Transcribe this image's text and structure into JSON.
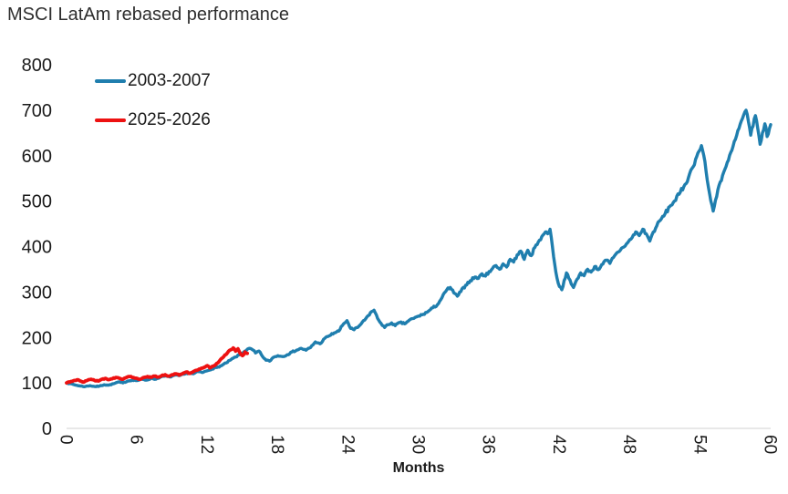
{
  "title": "MSCI LatAm rebased performance",
  "chart_data": {
    "type": "line",
    "title": "MSCI LatAm rebased performance",
    "xlabel": "Months",
    "ylabel": "",
    "xlim": [
      0,
      60
    ],
    "ylim": [
      0,
      800
    ],
    "x_ticks": [
      0,
      6,
      12,
      18,
      24,
      30,
      36,
      42,
      48,
      54,
      60
    ],
    "y_ticks": [
      0,
      100,
      200,
      300,
      400,
      500,
      600,
      700,
      800
    ],
    "grid": false,
    "legend_position": "top-left",
    "axis_line_color": "#d9d9d9",
    "background": "#ffffff",
    "render_noise": {
      "seed": 7,
      "step_months": 0.1,
      "amplitude_pct": 0.9
    },
    "series": [
      {
        "name": "2003-2007",
        "color": "#1f7eae",
        "line_width": 3.4,
        "points": [
          [
            0,
            100
          ],
          [
            0.4,
            98
          ],
          [
            0.8,
            95
          ],
          [
            1.2,
            93
          ],
          [
            1.6,
            92
          ],
          [
            2,
            94
          ],
          [
            2.4,
            92
          ],
          [
            2.8,
            93
          ],
          [
            3.2,
            96
          ],
          [
            3.6,
            95
          ],
          [
            4,
            98
          ],
          [
            4.4,
            102
          ],
          [
            4.8,
            100
          ],
          [
            5.2,
            104
          ],
          [
            5.6,
            106
          ],
          [
            6,
            105
          ],
          [
            6.4,
            108
          ],
          [
            6.8,
            106
          ],
          [
            7.2,
            110
          ],
          [
            7.6,
            108
          ],
          [
            8,
            113
          ],
          [
            8.4,
            115
          ],
          [
            8.8,
            113
          ],
          [
            9.2,
            117
          ],
          [
            9.6,
            116
          ],
          [
            10,
            119
          ],
          [
            10.4,
            122
          ],
          [
            10.8,
            120
          ],
          [
            11.2,
            125
          ],
          [
            11.6,
            123
          ],
          [
            12,
            127
          ],
          [
            12.4,
            131
          ],
          [
            12.8,
            134
          ],
          [
            13.2,
            138
          ],
          [
            13.6,
            144
          ],
          [
            14,
            151
          ],
          [
            14.4,
            157
          ],
          [
            14.8,
            163
          ],
          [
            15.2,
            170
          ],
          [
            15.6,
            176
          ],
          [
            15.9,
            172
          ],
          [
            16.1,
            166
          ],
          [
            16.4,
            170
          ],
          [
            16.7,
            158
          ],
          [
            17,
            150
          ],
          [
            17.3,
            148
          ],
          [
            17.6,
            156
          ],
          [
            18,
            160
          ],
          [
            18.4,
            158
          ],
          [
            18.8,
            162
          ],
          [
            19.2,
            168
          ],
          [
            19.6,
            172
          ],
          [
            20,
            176
          ],
          [
            20.4,
            172
          ],
          [
            20.8,
            178
          ],
          [
            21.2,
            190
          ],
          [
            21.6,
            186
          ],
          [
            22,
            198
          ],
          [
            22.4,
            204
          ],
          [
            22.8,
            210
          ],
          [
            23.2,
            214
          ],
          [
            23.6,
            230
          ],
          [
            23.9,
            237
          ],
          [
            24.2,
            220
          ],
          [
            24.5,
            217
          ],
          [
            24.8,
            222
          ],
          [
            25.1,
            230
          ],
          [
            25.4,
            238
          ],
          [
            25.7,
            248
          ],
          [
            26,
            257
          ],
          [
            26.2,
            260
          ],
          [
            26.5,
            242
          ],
          [
            26.8,
            231
          ],
          [
            27.1,
            222
          ],
          [
            27.4,
            228
          ],
          [
            27.7,
            232
          ],
          [
            28,
            226
          ],
          [
            28.4,
            233
          ],
          [
            28.8,
            230
          ],
          [
            29.2,
            238
          ],
          [
            29.6,
            242
          ],
          [
            30,
            247
          ],
          [
            30.4,
            251
          ],
          [
            30.8,
            257
          ],
          [
            31.2,
            265
          ],
          [
            31.6,
            272
          ],
          [
            32,
            288
          ],
          [
            32.4,
            305
          ],
          [
            32.7,
            310
          ],
          [
            33,
            298
          ],
          [
            33.3,
            291
          ],
          [
            33.6,
            301
          ],
          [
            34,
            315
          ],
          [
            34.4,
            325
          ],
          [
            34.8,
            333
          ],
          [
            35.1,
            330
          ],
          [
            35.4,
            340
          ],
          [
            35.7,
            335
          ],
          [
            36,
            345
          ],
          [
            36.3,
            352
          ],
          [
            36.6,
            358
          ],
          [
            36.9,
            350
          ],
          [
            37.2,
            362
          ],
          [
            37.5,
            355
          ],
          [
            37.8,
            372
          ],
          [
            38.1,
            366
          ],
          [
            38.4,
            382
          ],
          [
            38.7,
            390
          ],
          [
            39,
            372
          ],
          [
            39.3,
            392
          ],
          [
            39.6,
            380
          ],
          [
            39.9,
            398
          ],
          [
            40.2,
            410
          ],
          [
            40.5,
            422
          ],
          [
            40.8,
            432
          ],
          [
            41,
            428
          ],
          [
            41.2,
            438
          ],
          [
            41.4,
            400
          ],
          [
            41.6,
            360
          ],
          [
            41.8,
            330
          ],
          [
            42,
            312
          ],
          [
            42.2,
            305
          ],
          [
            42.4,
            325
          ],
          [
            42.6,
            342
          ],
          [
            42.8,
            330
          ],
          [
            43,
            318
          ],
          [
            43.2,
            310
          ],
          [
            43.5,
            328
          ],
          [
            43.8,
            342
          ],
          [
            44.1,
            336
          ],
          [
            44.4,
            350
          ],
          [
            44.7,
            344
          ],
          [
            45,
            356
          ],
          [
            45.3,
            349
          ],
          [
            45.6,
            360
          ],
          [
            46,
            370
          ],
          [
            46.3,
            363
          ],
          [
            46.6,
            376
          ],
          [
            47,
            388
          ],
          [
            47.4,
            398
          ],
          [
            47.8,
            408
          ],
          [
            48.2,
            420
          ],
          [
            48.5,
            432
          ],
          [
            48.8,
            424
          ],
          [
            49.1,
            438
          ],
          [
            49.4,
            428
          ],
          [
            49.7,
            412
          ],
          [
            50,
            432
          ],
          [
            50.3,
            446
          ],
          [
            50.6,
            458
          ],
          [
            51,
            472
          ],
          [
            51.4,
            488
          ],
          [
            51.8,
            500
          ],
          [
            52.2,
            515
          ],
          [
            52.6,
            532
          ],
          [
            53,
            552
          ],
          [
            53.3,
            572
          ],
          [
            53.6,
            592
          ],
          [
            53.9,
            610
          ],
          [
            54.1,
            622
          ],
          [
            54.3,
            600
          ],
          [
            54.5,
            565
          ],
          [
            54.7,
            530
          ],
          [
            54.9,
            500
          ],
          [
            55.1,
            478
          ],
          [
            55.3,
            502
          ],
          [
            55.5,
            525
          ],
          [
            55.7,
            542
          ],
          [
            55.9,
            556
          ],
          [
            56.1,
            570
          ],
          [
            56.4,
            590
          ],
          [
            56.7,
            612
          ],
          [
            57,
            636
          ],
          [
            57.3,
            660
          ],
          [
            57.6,
            682
          ],
          [
            57.9,
            700
          ],
          [
            58.1,
            675
          ],
          [
            58.3,
            645
          ],
          [
            58.5,
            665
          ],
          [
            58.7,
            688
          ],
          [
            58.9,
            660
          ],
          [
            59.1,
            625
          ],
          [
            59.3,
            650
          ],
          [
            59.5,
            670
          ],
          [
            59.7,
            642
          ],
          [
            59.9,
            660
          ],
          [
            60,
            668
          ]
        ]
      },
      {
        "name": "2025-2026",
        "color": "#ed1111",
        "line_width": 3.8,
        "points": [
          [
            0,
            100
          ],
          [
            0.3,
            102
          ],
          [
            0.6,
            105
          ],
          [
            0.9,
            107
          ],
          [
            1.2,
            104
          ],
          [
            1.5,
            102
          ],
          [
            1.8,
            106
          ],
          [
            2.1,
            108
          ],
          [
            2.4,
            105
          ],
          [
            2.7,
            104
          ],
          [
            3,
            108
          ],
          [
            3.3,
            110
          ],
          [
            3.6,
            107
          ],
          [
            3.9,
            109
          ],
          [
            4.2,
            112
          ],
          [
            4.5,
            110
          ],
          [
            4.8,
            108
          ],
          [
            5.1,
            112
          ],
          [
            5.4,
            114
          ],
          [
            5.7,
            112
          ],
          [
            6,
            110
          ],
          [
            6.3,
            108
          ],
          [
            6.6,
            112
          ],
          [
            6.9,
            114
          ],
          [
            7.2,
            112
          ],
          [
            7.5,
            115
          ],
          [
            7.8,
            113
          ],
          [
            8.1,
            116
          ],
          [
            8.4,
            118
          ],
          [
            8.7,
            115
          ],
          [
            9,
            118
          ],
          [
            9.3,
            120
          ],
          [
            9.6,
            117
          ],
          [
            9.9,
            121
          ],
          [
            10.2,
            124
          ],
          [
            10.5,
            121
          ],
          [
            10.8,
            125
          ],
          [
            11.1,
            128
          ],
          [
            11.4,
            131
          ],
          [
            11.7,
            134
          ],
          [
            12,
            138
          ],
          [
            12.2,
            133
          ],
          [
            12.5,
            137
          ],
          [
            12.8,
            143
          ],
          [
            13.1,
            151
          ],
          [
            13.4,
            158
          ],
          [
            13.7,
            166
          ],
          [
            14,
            173
          ],
          [
            14.2,
            177
          ],
          [
            14.4,
            170
          ],
          [
            14.6,
            175
          ],
          [
            14.8,
            165
          ],
          [
            15,
            160
          ],
          [
            15.2,
            168
          ],
          [
            15.4,
            165
          ]
        ]
      }
    ]
  }
}
